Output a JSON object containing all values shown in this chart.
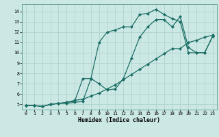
{
  "xlabel": "Humidex (Indice chaleur)",
  "bg_color": "#cce8e5",
  "grid_color": "#aacfcc",
  "line_color": "#1a6e65",
  "xlim_min": -0.5,
  "xlim_max": 23.5,
  "ylim_min": 4.5,
  "ylim_max": 14.7,
  "xticks": [
    0,
    1,
    2,
    3,
    4,
    5,
    6,
    7,
    8,
    9,
    10,
    11,
    12,
    13,
    14,
    15,
    16,
    17,
    18,
    19,
    20,
    21,
    22,
    23
  ],
  "yticks": [
    5,
    6,
    7,
    8,
    9,
    10,
    11,
    12,
    13,
    14
  ],
  "line1_x": [
    0,
    1,
    2,
    3,
    4,
    5,
    6,
    7,
    8,
    9,
    10,
    11,
    12,
    13,
    14,
    15,
    16,
    17,
    18,
    19,
    20,
    21,
    22,
    23
  ],
  "line1_y": [
    4.9,
    4.9,
    4.8,
    5.0,
    5.1,
    5.1,
    5.2,
    5.3,
    7.5,
    11.0,
    12.0,
    12.2,
    12.5,
    12.5,
    13.7,
    13.8,
    14.2,
    13.7,
    13.3,
    13.0,
    10.0,
    10.0,
    10.0,
    11.6
  ],
  "line2_x": [
    0,
    1,
    2,
    3,
    4,
    5,
    6,
    7,
    8,
    9,
    10,
    11,
    12,
    13,
    14,
    15,
    16,
    17,
    18,
    19,
    20,
    21,
    22,
    23
  ],
  "line2_y": [
    4.9,
    4.9,
    4.8,
    5.0,
    5.1,
    5.2,
    5.3,
    7.5,
    7.5,
    7.0,
    6.4,
    6.5,
    7.5,
    9.5,
    11.5,
    12.5,
    13.2,
    13.2,
    12.5,
    13.5,
    10.5,
    10.0,
    10.0,
    11.6
  ],
  "line3_x": [
    0,
    1,
    2,
    3,
    4,
    5,
    6,
    7,
    8,
    9,
    10,
    11,
    12,
    13,
    14,
    15,
    16,
    17,
    18,
    19,
    20,
    21,
    22,
    23
  ],
  "line3_y": [
    4.9,
    4.9,
    4.8,
    5.0,
    5.1,
    5.2,
    5.4,
    5.5,
    5.8,
    6.1,
    6.5,
    6.9,
    7.4,
    7.9,
    8.4,
    8.9,
    9.4,
    9.9,
    10.4,
    10.4,
    11.0,
    11.2,
    11.5,
    11.7
  ]
}
